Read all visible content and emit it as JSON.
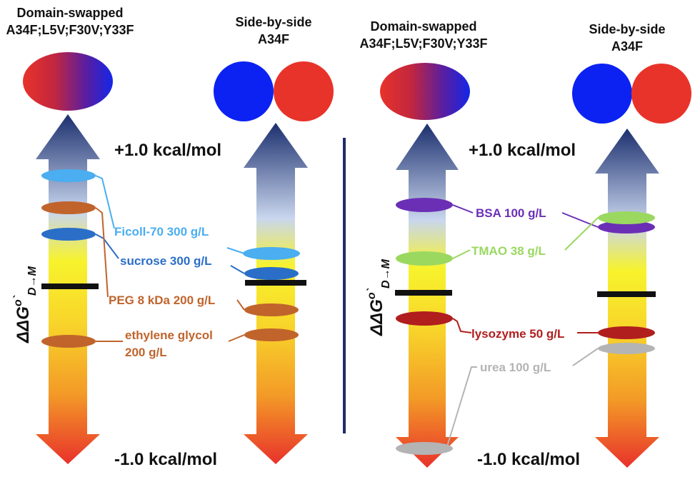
{
  "colors": {
    "blue_lobe": "#0b22f2",
    "red_lobe": "#e8332a",
    "arrow_top": "#1b2f6e",
    "arrow_mid_blue": "#c9d6ee",
    "arrow_yellow": "#f7f32c",
    "arrow_orange": "#f39a27",
    "arrow_bottom": "#e8322b",
    "divider": "#1f2b6b",
    "ficoll": "#4aaef0",
    "sucrose": "#2a6ec8",
    "peg": "#c0642c",
    "ethylene_glycol": "#c0642c",
    "bsa": "#6b2fb6",
    "tmao": "#9ad860",
    "lysozyme": "#b01e1e",
    "urea": "#b4b4b4"
  },
  "axis_label": {
    "prefix": "ΔΔG",
    "superscript": "o`",
    "subscript": "D→M"
  },
  "panels": [
    {
      "id": "left",
      "columns": [
        {
          "id": "domain-swapped",
          "title_lines": [
            "Domain-swapped",
            "A34F;L5V;F30V;Y33F"
          ],
          "icon": "fused-ellipse-icon"
        },
        {
          "id": "side-by-side",
          "title_lines": [
            "Side-by-side",
            "A34F"
          ],
          "icon": "two-circles-icon"
        }
      ],
      "scale_top": "+1.0 kcal/mol",
      "scale_bottom": "-1.0 kcal/mol",
      "labels": [
        {
          "id": "ficoll",
          "lines": [
            "Ficoll-70 300 g/L"
          ],
          "color_key": "ficoll"
        },
        {
          "id": "sucrose",
          "lines": [
            "sucrose 300 g/L"
          ],
          "color_key": "sucrose"
        },
        {
          "id": "peg",
          "lines": [
            "PEG 8 kDa 200 g/L"
          ],
          "color_key": "peg"
        },
        {
          "id": "ethylene-glycol",
          "lines": [
            "ethylene glycol",
            "200 g/L"
          ],
          "color_key": "ethylene_glycol"
        }
      ]
    },
    {
      "id": "right",
      "columns": [
        {
          "id": "domain-swapped",
          "title_lines": [
            "Domain-swapped",
            "A34F;L5V;F30V;Y33F"
          ],
          "icon": "fused-ellipse-icon"
        },
        {
          "id": "side-by-side",
          "title_lines": [
            "Side-by-side",
            "A34F"
          ],
          "icon": "two-circles-icon"
        }
      ],
      "scale_top": "+1.0 kcal/mol",
      "scale_bottom": "-1.0 kcal/mol",
      "labels": [
        {
          "id": "bsa",
          "lines": [
            "BSA 100 g/L"
          ],
          "color_key": "bsa"
        },
        {
          "id": "tmao",
          "lines": [
            "TMAO 38 g/L"
          ],
          "color_key": "tmao"
        },
        {
          "id": "lysozyme",
          "lines": [
            "lysozyme 50 g/L"
          ],
          "color_key": "lysozyme"
        },
        {
          "id": "urea",
          "lines": [
            "urea 100 g/L"
          ],
          "color_key": "urea"
        }
      ]
    }
  ]
}
